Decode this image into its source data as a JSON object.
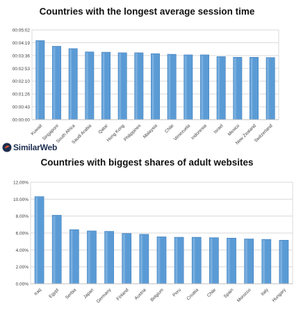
{
  "brand": {
    "name": "SimilarWeb",
    "accent_color": "#e8522b",
    "text_color": "#1d2e4f"
  },
  "bar_color": "#5b9bd5",
  "chart_data": [
    {
      "type": "bar",
      "title": "Countries with the longest average session time",
      "categories": [
        "Kuwait",
        "Singapore",
        "South Africa",
        "Saudi Arabia",
        "Qatar",
        "Hong Kong",
        "Philippines",
        "Malaysia",
        "Chile",
        "Venezuela",
        "Indonesia",
        "Israel",
        "Mexico",
        "New Zealand",
        "Switzerland"
      ],
      "values": [
        266,
        247,
        239,
        228,
        227,
        225,
        225,
        222,
        220,
        218,
        218,
        212,
        210,
        210,
        209
      ],
      "value_unit": "seconds",
      "yticks": [
        "00:00:00",
        "00:00:43",
        "00:01:26",
        "00:02:10",
        "00:02:53",
        "00:03:36",
        "00:04:19",
        "00:05:02"
      ],
      "ylim": [
        0,
        302
      ],
      "grid": true,
      "legend": "none"
    },
    {
      "type": "bar",
      "title": "Countries with biggest shares of adult websites",
      "categories": [
        "Iraq",
        "Egypt",
        "Serbia",
        "Japan",
        "Germany",
        "Finland",
        "Austria",
        "Belgium",
        "Peru",
        "Croatia",
        "Chile",
        "Spain",
        "Morocco",
        "Italy",
        "Hungary"
      ],
      "values": [
        10.3,
        8.1,
        6.4,
        6.25,
        6.2,
        5.95,
        5.85,
        5.55,
        5.5,
        5.5,
        5.45,
        5.4,
        5.3,
        5.25,
        5.15
      ],
      "value_unit": "%",
      "yticks": [
        "0.00%",
        "2.00%",
        "4.00%",
        "6.00%",
        "8.00%",
        "10.00%",
        "12.00%"
      ],
      "ylim": [
        0,
        12
      ],
      "grid": true,
      "legend": "none"
    }
  ]
}
